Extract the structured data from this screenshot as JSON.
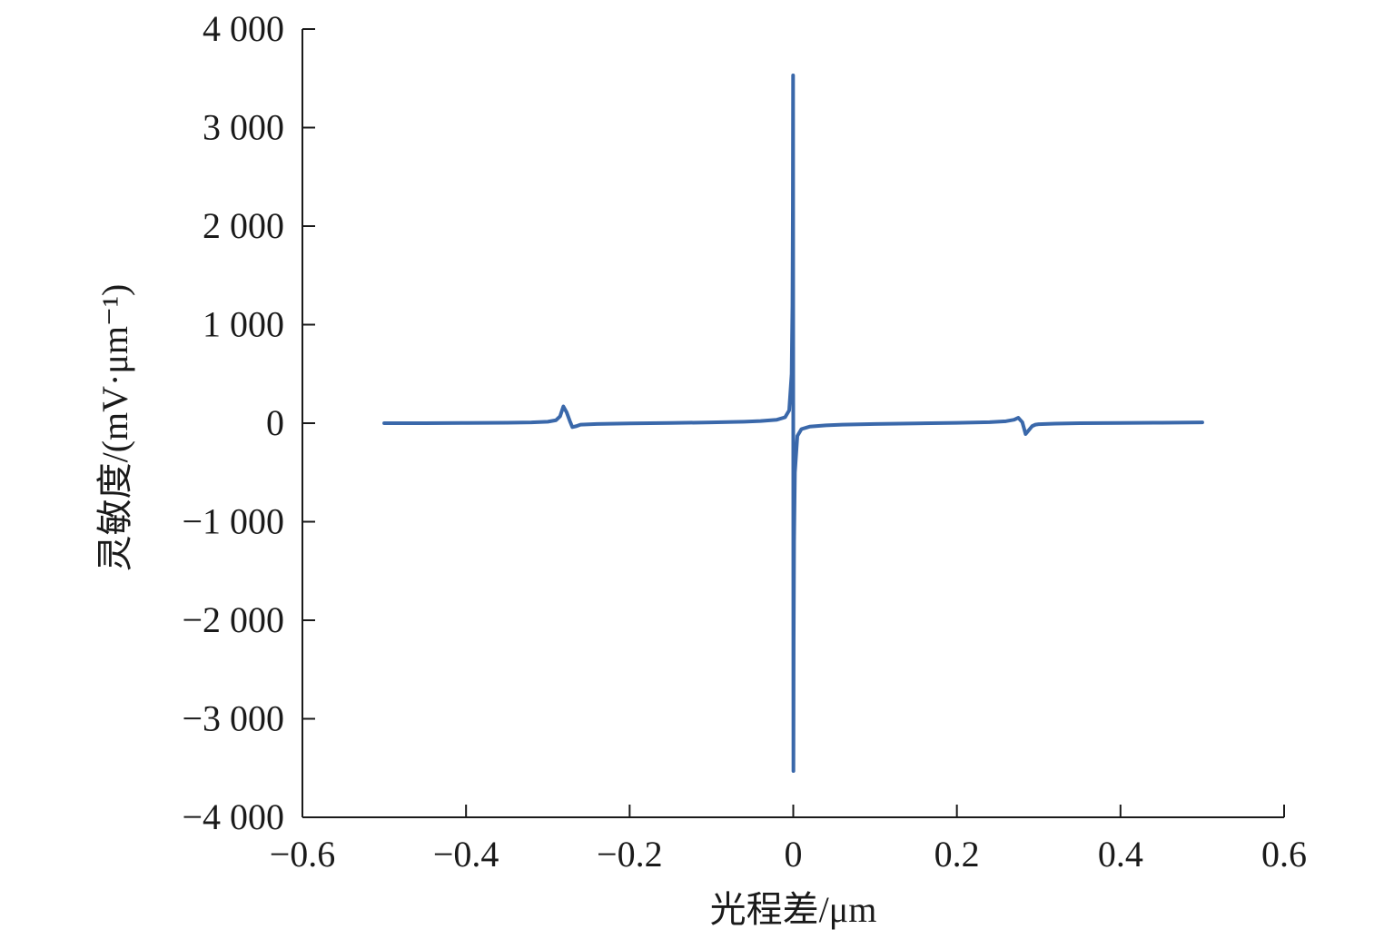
{
  "chart_data": {
    "type": "line",
    "title": "",
    "xlabel": "光程差/μm",
    "ylabel": "灵敏度/(mV·μm⁻¹)",
    "xlim": [
      -0.6,
      0.6
    ],
    "ylim": [
      -4000,
      4000
    ],
    "x_ticks": [
      -0.6,
      -0.4,
      -0.2,
      0,
      0.2,
      0.4,
      0.6
    ],
    "x_tick_labels": [
      "−0.6",
      "−0.4",
      "−0.2",
      "0",
      "0.2",
      "0.4",
      "0.6"
    ],
    "y_ticks": [
      4000,
      3000,
      2000,
      1000,
      0,
      -1000,
      -2000,
      -3000,
      -4000
    ],
    "y_tick_labels": [
      "4 000",
      "3 000",
      "2 000",
      "1 000",
      "0",
      "−1 000",
      "−2 000",
      "−3 000",
      "−4 000"
    ],
    "grid": false,
    "legend": "none",
    "series": [
      {
        "color": "#3a68aa",
        "x": [
          -0.5,
          -0.45,
          -0.4,
          -0.35,
          -0.32,
          -0.3,
          -0.29,
          -0.285,
          -0.281,
          -0.277,
          -0.273,
          -0.27,
          -0.265,
          -0.26,
          -0.24,
          -0.2,
          -0.15,
          -0.1,
          -0.06,
          -0.04,
          -0.02,
          -0.01,
          -0.005,
          -0.002,
          -0.001,
          -0.0005,
          -0.0002,
          0.0002,
          0.0005,
          0.001,
          0.002,
          0.005,
          0.01,
          0.02,
          0.04,
          0.06,
          0.1,
          0.15,
          0.2,
          0.24,
          0.26,
          0.27,
          0.275,
          0.28,
          0.284,
          0.288,
          0.292,
          0.296,
          0.3,
          0.32,
          0.35,
          0.4,
          0.45,
          0.5
        ],
        "y": [
          0,
          0,
          2,
          5,
          8,
          15,
          30,
          70,
          170,
          110,
          20,
          -40,
          -30,
          -15,
          -8,
          -2,
          2,
          8,
          15,
          22,
          35,
          60,
          130,
          500,
          1200,
          2200,
          3530,
          -3530,
          -2200,
          -1200,
          -500,
          -130,
          -60,
          -35,
          -22,
          -15,
          -8,
          -2,
          3,
          10,
          20,
          35,
          55,
          10,
          -110,
          -70,
          -30,
          -15,
          -10,
          -5,
          0,
          2,
          5,
          8
        ]
      }
    ]
  }
}
